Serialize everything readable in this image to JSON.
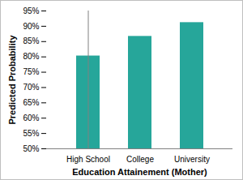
{
  "chart_data": {
    "type": "bar",
    "x_label": "Education Attainement (Mother)",
    "y_label": "Predicted Probability",
    "categories": [
      "High School",
      "College",
      "University"
    ],
    "values": [
      80.3,
      86.7,
      91.2
    ],
    "color": "#26a69a",
    "ylim": [
      50,
      95
    ],
    "yticks": [
      {
        "value": 50,
        "label": "50%"
      },
      {
        "value": 55,
        "label": "55%"
      },
      {
        "value": 60,
        "label": "60%"
      },
      {
        "value": 65,
        "label": "65%"
      },
      {
        "value": 70,
        "label": "70%"
      },
      {
        "value": 75,
        "label": "75%"
      },
      {
        "value": 80,
        "label": "80%"
      },
      {
        "value": 85,
        "label": "85%"
      },
      {
        "value": 90,
        "label": "90%"
      },
      {
        "value": 95,
        "label": "95%"
      }
    ],
    "grid": false
  }
}
